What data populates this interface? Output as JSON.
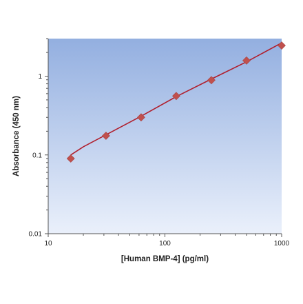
{
  "chart_data": {
    "type": "scatter",
    "title": "",
    "xlabel": "[Human BMP-4] (pg/ml)",
    "ylabel": "Absorbance (450 nm)",
    "xscale": "log",
    "yscale": "log",
    "xlim": [
      10,
      1000
    ],
    "ylim": [
      0.01,
      3
    ],
    "x_ticks": [
      10,
      100,
      1000
    ],
    "x_tick_labels": [
      "10",
      "100",
      "1000"
    ],
    "y_ticks": [
      0.01,
      0.1,
      1
    ],
    "y_tick_labels": [
      "0.01",
      "0.1",
      "1"
    ],
    "grid": false,
    "legend": "none",
    "background": "gradient blue to white",
    "series": [
      {
        "marker": "diamond",
        "color": "#c0504d",
        "x": [
          15.6,
          31.25,
          62.5,
          125,
          250,
          500,
          1000
        ],
        "y": [
          0.09,
          0.175,
          0.3,
          0.56,
          0.89,
          1.58,
          2.45
        ]
      }
    ],
    "fit_line": {
      "color": "#b01e2c",
      "x": [
        15.6,
        20,
        31.25,
        62.5,
        125,
        250,
        500,
        1000
      ],
      "y": [
        0.1,
        0.127,
        0.18,
        0.31,
        0.55,
        0.92,
        1.52,
        2.65
      ]
    }
  },
  "colors": {
    "plot_top": "#93afe0",
    "plot_bottom": "#eaf0fb",
    "marker": "#c0504d",
    "fit_line": "#b01e2c",
    "axis": "#555555"
  }
}
